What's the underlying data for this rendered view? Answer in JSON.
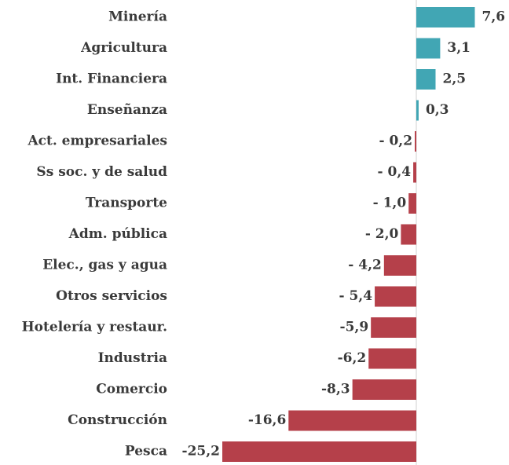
{
  "chart_data": {
    "type": "bar",
    "orientation": "horizontal",
    "categories": [
      "Minería",
      "Agricultura",
      "Int. Financiera",
      "Enseñanza",
      "Act. empresariales",
      "Ss soc. y de salud",
      "Transporte",
      "Adm. pública",
      "Elec., gas y agua",
      "Otros servicios",
      "Hotelería y restaur.",
      "Industria",
      "Comercio",
      "Construcción",
      "Pesca"
    ],
    "values": [
      7.6,
      3.1,
      2.5,
      0.3,
      -0.2,
      -0.4,
      -1.0,
      -2.0,
      -4.2,
      -5.4,
      -5.9,
      -6.2,
      -8.3,
      -16.6,
      -25.2
    ],
    "value_labels": [
      "7,6",
      "3,1",
      "2,5",
      "0,3",
      "- 0,2",
      "- 0,4",
      "- 1,0",
      "- 2,0",
      "- 4,2",
      "- 5,4",
      "-5,9",
      "-6,2",
      "-8,3",
      "-16,6",
      "-25,2"
    ],
    "color_positive": "#41a6b4",
    "color_negative": "#b5404a"
  }
}
